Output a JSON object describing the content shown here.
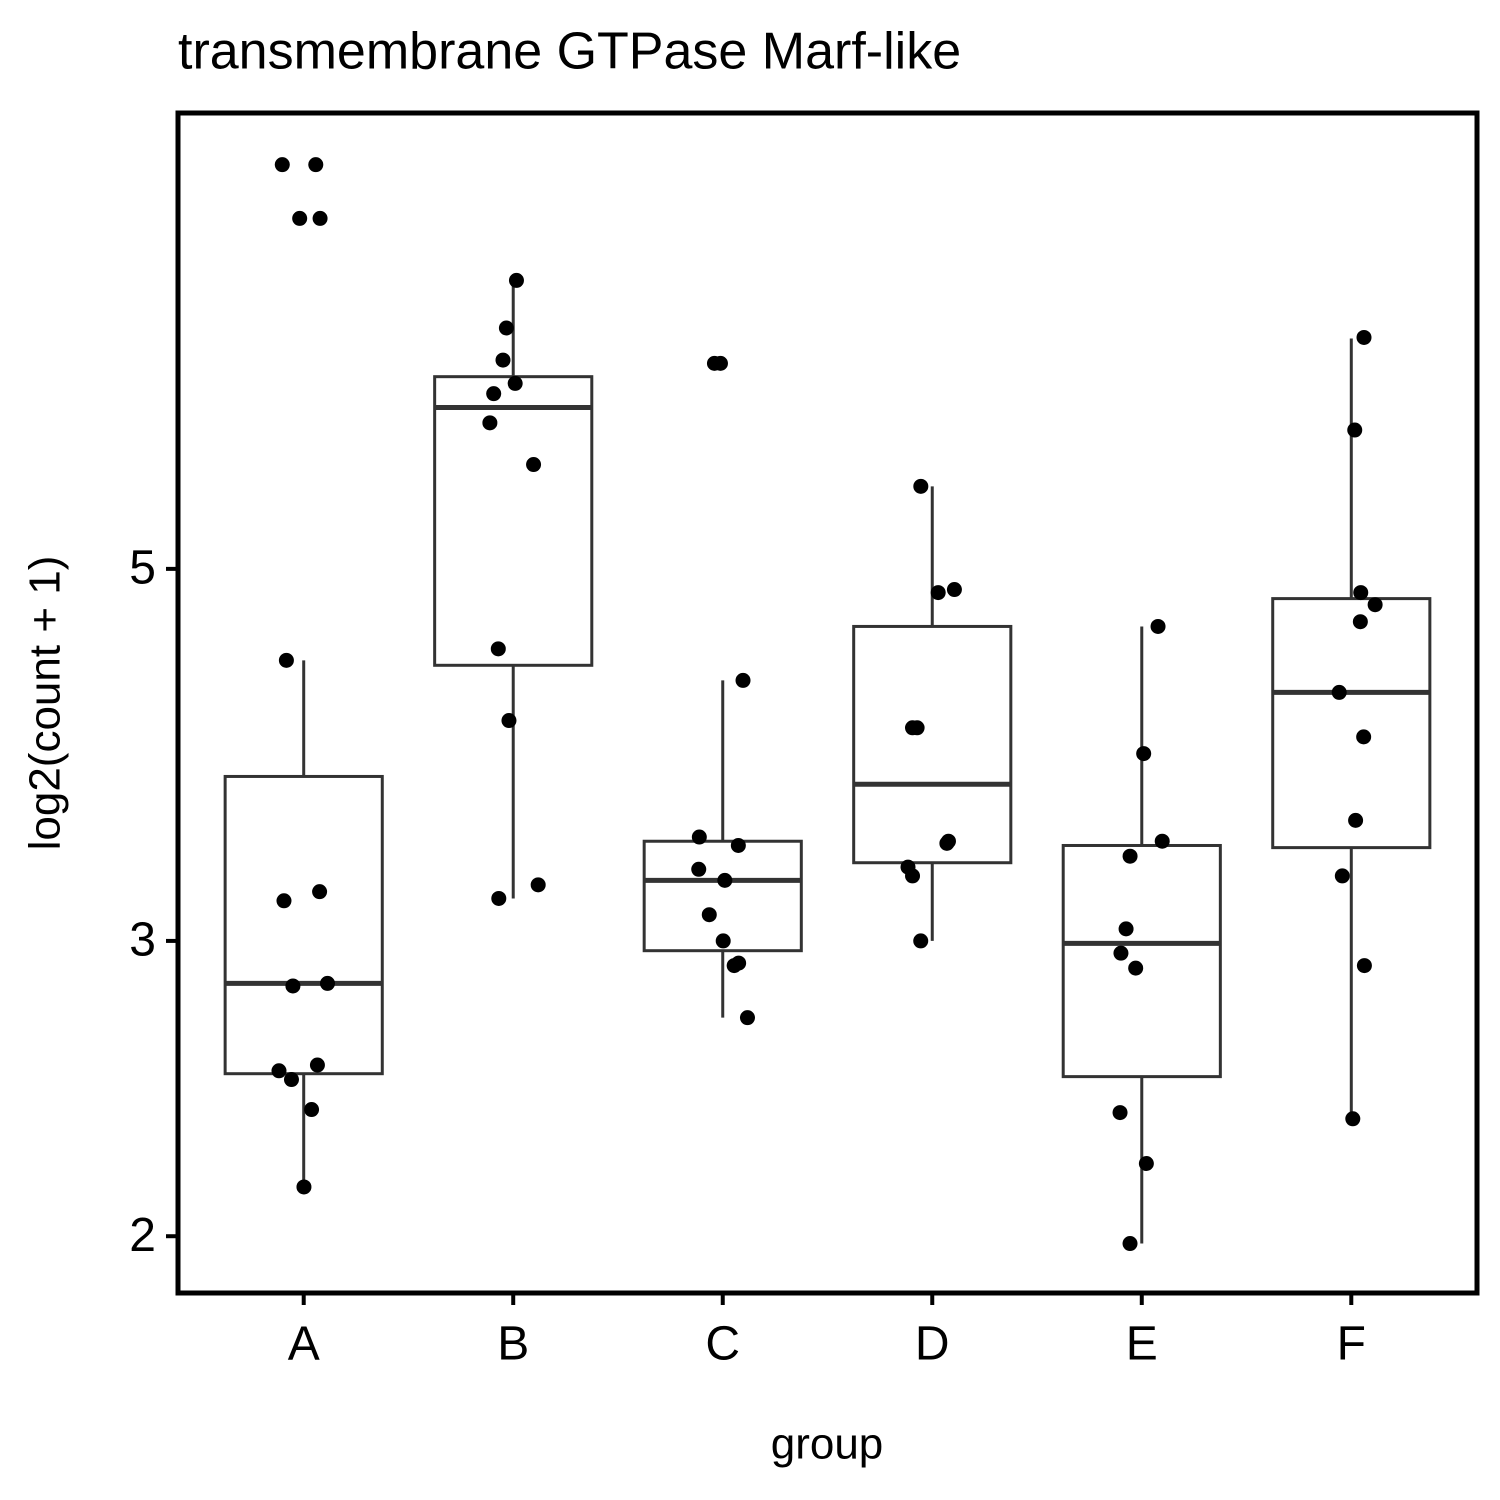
{
  "chart_data": {
    "type": "boxplot",
    "title": "transmembrane GTPase Marf-like",
    "x_label": "group",
    "y_label": "log2(count + 1)",
    "categories": [
      "A",
      "B",
      "C",
      "D",
      "E",
      "F"
    ],
    "log_scale": true,
    "ylim": [
      1.85,
      9.35
    ],
    "yticks": [
      2,
      3,
      5
    ],
    "box_color": "#333333",
    "point_color": "#000000",
    "boxes": [
      {
        "whislo": 2.14,
        "q1": 2.5,
        "median": 2.83,
        "q3": 3.76,
        "whishi": 4.41,
        "points": [
          8.71,
          8.71,
          8.09,
          8.09,
          4.41,
          3.21,
          3.17,
          2.83,
          2.82,
          2.53,
          2.51,
          2.48,
          2.38,
          2.14
        ]
      },
      {
        "whislo": 3.18,
        "q1": 4.38,
        "median": 6.24,
        "q3": 6.51,
        "whishi": 7.41,
        "points": [
          7.43,
          6.96,
          6.66,
          6.45,
          6.36,
          6.11,
          5.77,
          4.48,
          4.06,
          3.24,
          3.18
        ]
      },
      {
        "whislo": 2.7,
        "q1": 2.96,
        "median": 3.26,
        "q3": 3.44,
        "whishi": 4.29,
        "points": [
          6.63,
          6.63,
          4.29,
          3.46,
          3.42,
          3.31,
          3.26,
          3.11,
          3.0,
          2.91,
          2.9,
          2.7
        ]
      },
      {
        "whislo": 3.0,
        "q1": 3.34,
        "median": 3.72,
        "q3": 4.62,
        "whishi": 5.6,
        "points": [
          5.6,
          4.86,
          4.84,
          4.02,
          4.02,
          3.44,
          3.43,
          3.32,
          3.28,
          3.0
        ]
      },
      {
        "whislo": 1.98,
        "q1": 2.49,
        "median": 2.99,
        "q3": 3.42,
        "whishi": 4.62,
        "points": [
          4.62,
          3.88,
          3.44,
          3.37,
          3.05,
          2.95,
          2.89,
          2.37,
          2.21,
          1.98
        ]
      },
      {
        "whislo": 2.35,
        "q1": 3.41,
        "median": 4.22,
        "q3": 4.8,
        "whishi": 6.86,
        "points": [
          6.87,
          6.05,
          4.84,
          4.76,
          4.65,
          4.22,
          3.97,
          3.54,
          3.28,
          2.9,
          2.35
        ]
      }
    ]
  }
}
